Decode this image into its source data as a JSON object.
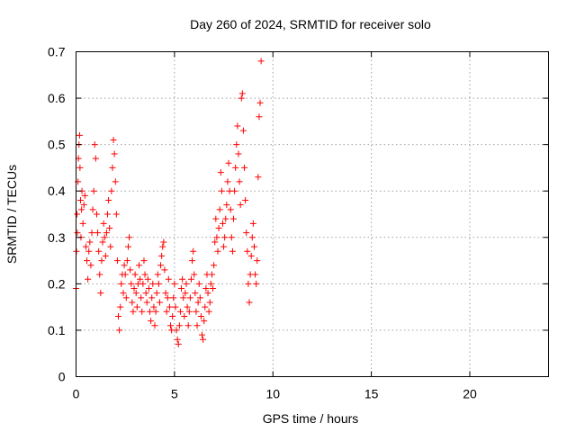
{
  "chart_data": {
    "type": "scatter",
    "title": "Day 260 of 2024, SRMTID for receiver solo",
    "xlabel": "GPS time / hours",
    "ylabel": "SRMTID / TECUs",
    "xlim": [
      0,
      24
    ],
    "ylim": [
      0,
      0.7
    ],
    "xticks": [
      0,
      5,
      10,
      15,
      20
    ],
    "yticks": [
      0,
      0.1,
      0.2,
      0.3,
      0.4,
      0.5,
      0.6,
      0.7
    ],
    "xtick_labels": [
      "0",
      "5",
      "10",
      "15",
      "20"
    ],
    "ytick_labels": [
      "0",
      "0.1",
      "0.2",
      "0.3",
      "0.4",
      "0.5",
      "0.6",
      "0.7"
    ],
    "grid": true,
    "marker": "+",
    "color": "#ff0000",
    "series": [
      {
        "name": "solo",
        "points": [
          [
            0.0,
            0.19
          ],
          [
            0.02,
            0.27
          ],
          [
            0.05,
            0.35
          ],
          [
            0.07,
            0.31
          ],
          [
            0.1,
            0.42
          ],
          [
            0.12,
            0.47
          ],
          [
            0.15,
            0.5
          ],
          [
            0.18,
            0.52
          ],
          [
            0.2,
            0.45
          ],
          [
            0.23,
            0.38
          ],
          [
            0.25,
            0.3
          ],
          [
            0.28,
            0.36
          ],
          [
            0.3,
            0.4
          ],
          [
            0.35,
            0.33
          ],
          [
            0.4,
            0.37
          ],
          [
            0.45,
            0.39
          ],
          [
            0.5,
            0.28
          ],
          [
            0.55,
            0.25
          ],
          [
            0.6,
            0.21
          ],
          [
            0.65,
            0.27
          ],
          [
            0.7,
            0.29
          ],
          [
            0.75,
            0.24
          ],
          [
            0.8,
            0.31
          ],
          [
            0.85,
            0.36
          ],
          [
            0.9,
            0.4
          ],
          [
            0.95,
            0.5
          ],
          [
            1.0,
            0.47
          ],
          [
            1.05,
            0.35
          ],
          [
            1.1,
            0.31
          ],
          [
            1.15,
            0.27
          ],
          [
            1.2,
            0.22
          ],
          [
            1.25,
            0.18
          ],
          [
            1.3,
            0.25
          ],
          [
            1.35,
            0.29
          ],
          [
            1.4,
            0.33
          ],
          [
            1.45,
            0.3
          ],
          [
            1.5,
            0.26
          ],
          [
            1.55,
            0.31
          ],
          [
            1.6,
            0.35
          ],
          [
            1.65,
            0.38
          ],
          [
            1.7,
            0.32
          ],
          [
            1.75,
            0.28
          ],
          [
            1.8,
            0.4
          ],
          [
            1.85,
            0.45
          ],
          [
            1.9,
            0.51
          ],
          [
            1.95,
            0.48
          ],
          [
            2.0,
            0.42
          ],
          [
            2.05,
            0.35
          ],
          [
            2.1,
            0.25
          ],
          [
            2.15,
            0.13
          ],
          [
            2.2,
            0.1
          ],
          [
            2.25,
            0.15
          ],
          [
            2.3,
            0.2
          ],
          [
            2.35,
            0.22
          ],
          [
            2.4,
            0.18
          ],
          [
            2.45,
            0.24
          ],
          [
            2.5,
            0.22
          ],
          [
            2.55,
            0.17
          ],
          [
            2.6,
            0.25
          ],
          [
            2.65,
            0.28
          ],
          [
            2.7,
            0.3
          ],
          [
            2.75,
            0.23
          ],
          [
            2.8,
            0.2
          ],
          [
            2.85,
            0.16
          ],
          [
            2.9,
            0.14
          ],
          [
            2.95,
            0.19
          ],
          [
            3.0,
            0.22
          ],
          [
            3.05,
            0.18
          ],
          [
            3.1,
            0.15
          ],
          [
            3.15,
            0.2
          ],
          [
            3.2,
            0.24
          ],
          [
            3.25,
            0.21
          ],
          [
            3.3,
            0.17
          ],
          [
            3.35,
            0.14
          ],
          [
            3.4,
            0.2
          ],
          [
            3.45,
            0.25
          ],
          [
            3.5,
            0.22
          ],
          [
            3.55,
            0.18
          ],
          [
            3.6,
            0.16
          ],
          [
            3.65,
            0.21
          ],
          [
            3.7,
            0.19
          ],
          [
            3.75,
            0.14
          ],
          [
            3.8,
            0.12
          ],
          [
            3.85,
            0.17
          ],
          [
            3.9,
            0.2
          ],
          [
            3.95,
            0.15
          ],
          [
            4.0,
            0.11
          ],
          [
            4.05,
            0.14
          ],
          [
            4.1,
            0.18
          ],
          [
            4.15,
            0.22
          ],
          [
            4.2,
            0.2
          ],
          [
            4.25,
            0.16
          ],
          [
            4.3,
            0.24
          ],
          [
            4.35,
            0.26
          ],
          [
            4.4,
            0.28
          ],
          [
            4.45,
            0.29
          ],
          [
            4.5,
            0.23
          ],
          [
            4.55,
            0.18
          ],
          [
            4.6,
            0.14
          ],
          [
            4.65,
            0.17
          ],
          [
            4.7,
            0.21
          ],
          [
            4.75,
            0.15
          ],
          [
            4.8,
            0.11
          ],
          [
            4.85,
            0.1
          ],
          [
            4.9,
            0.13
          ],
          [
            4.95,
            0.17
          ],
          [
            5.0,
            0.2
          ],
          [
            5.05,
            0.15
          ],
          [
            5.1,
            0.1
          ],
          [
            5.15,
            0.08
          ],
          [
            5.2,
            0.07
          ],
          [
            5.25,
            0.11
          ],
          [
            5.3,
            0.14
          ],
          [
            5.35,
            0.19
          ],
          [
            5.4,
            0.21
          ],
          [
            5.45,
            0.17
          ],
          [
            5.5,
            0.13
          ],
          [
            5.55,
            0.18
          ],
          [
            5.6,
            0.2
          ],
          [
            5.65,
            0.15
          ],
          [
            5.7,
            0.11
          ],
          [
            5.75,
            0.14
          ],
          [
            5.8,
            0.17
          ],
          [
            5.85,
            0.21
          ],
          [
            5.9,
            0.25
          ],
          [
            5.95,
            0.27
          ],
          [
            6.0,
            0.22
          ],
          [
            6.05,
            0.18
          ],
          [
            6.1,
            0.14
          ],
          [
            6.15,
            0.11
          ],
          [
            6.2,
            0.16
          ],
          [
            6.25,
            0.2
          ],
          [
            6.3,
            0.17
          ],
          [
            6.35,
            0.13
          ],
          [
            6.4,
            0.09
          ],
          [
            6.45,
            0.08
          ],
          [
            6.5,
            0.12
          ],
          [
            6.55,
            0.15
          ],
          [
            6.6,
            0.19
          ],
          [
            6.65,
            0.22
          ],
          [
            6.7,
            0.18
          ],
          [
            6.75,
            0.14
          ],
          [
            6.8,
            0.16
          ],
          [
            6.85,
            0.2
          ],
          [
            6.9,
            0.22
          ],
          [
            6.95,
            0.19
          ],
          [
            7.0,
            0.24
          ],
          [
            7.05,
            0.29
          ],
          [
            7.1,
            0.34
          ],
          [
            7.15,
            0.3
          ],
          [
            7.2,
            0.27
          ],
          [
            7.25,
            0.32
          ],
          [
            7.3,
            0.36
          ],
          [
            7.35,
            0.44
          ],
          [
            7.4,
            0.4
          ],
          [
            7.45,
            0.33
          ],
          [
            7.5,
            0.28
          ],
          [
            7.55,
            0.3
          ],
          [
            7.6,
            0.34
          ],
          [
            7.65,
            0.37
          ],
          [
            7.7,
            0.42
          ],
          [
            7.75,
            0.46
          ],
          [
            7.8,
            0.4
          ],
          [
            7.85,
            0.36
          ],
          [
            7.9,
            0.3
          ],
          [
            7.95,
            0.27
          ],
          [
            8.0,
            0.34
          ],
          [
            8.05,
            0.4
          ],
          [
            8.1,
            0.45
          ],
          [
            8.15,
            0.5
          ],
          [
            8.2,
            0.54
          ],
          [
            8.25,
            0.48
          ],
          [
            8.3,
            0.42
          ],
          [
            8.35,
            0.37
          ],
          [
            8.4,
            0.6
          ],
          [
            8.45,
            0.61
          ],
          [
            8.5,
            0.53
          ],
          [
            8.55,
            0.45
          ],
          [
            8.6,
            0.38
          ],
          [
            8.65,
            0.31
          ],
          [
            8.7,
            0.27
          ],
          [
            8.75,
            0.2
          ],
          [
            8.8,
            0.16
          ],
          [
            8.85,
            0.22
          ],
          [
            8.9,
            0.26
          ],
          [
            8.95,
            0.3
          ],
          [
            9.0,
            0.33
          ],
          [
            9.05,
            0.28
          ],
          [
            9.1,
            0.22
          ],
          [
            9.15,
            0.2
          ],
          [
            9.2,
            0.25
          ],
          [
            9.25,
            0.43
          ],
          [
            9.3,
            0.56
          ],
          [
            9.35,
            0.59
          ],
          [
            9.4,
            0.68
          ]
        ]
      }
    ]
  }
}
